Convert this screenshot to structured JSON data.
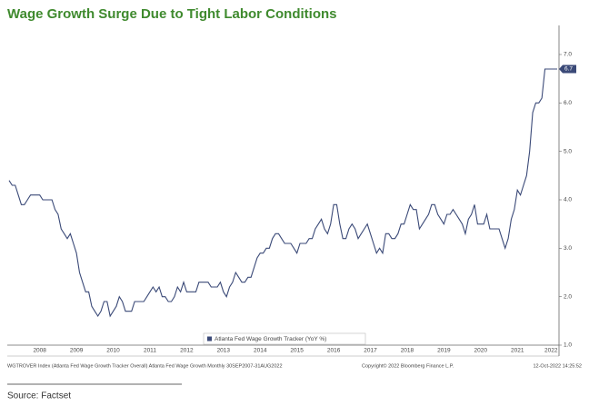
{
  "chart_data": {
    "type": "line",
    "title": "Wage Growth Surge Due to Tight Labor Conditions",
    "legend": "Atlanta Fed Wage Growth Tracker (YoY %)",
    "legend_position": "bottom-center",
    "footer_left": "WGTROVER Index (Atlanta Fed Wage Growth Tracker Overall) Atlanta Fed Wage Growth  Monthly 30SEP2007-31AUG2022",
    "footer_center": "Copyright© 2022 Bloomberg Finance L.P.",
    "footer_right": "12-Oct-2022 14:25:52",
    "source": "Source: Factset",
    "color": "#3b4a78",
    "ylim": [
      1,
      7.6
    ],
    "yticks": [
      {
        "value": 1,
        "label": "1.0"
      },
      {
        "value": 2,
        "label": "2.0"
      },
      {
        "value": 3,
        "label": "3.0"
      },
      {
        "value": 4,
        "label": "4.0"
      },
      {
        "value": 5,
        "label": "5.0"
      },
      {
        "value": 6,
        "label": "6.0"
      },
      {
        "value": 7,
        "label": "7.0"
      }
    ],
    "categories": [
      null,
      null,
      null,
      null,
      null,
      null,
      null,
      null,
      null,
      null,
      "2008",
      null,
      null,
      null,
      null,
      null,
      null,
      null,
      null,
      null,
      null,
      null,
      "2009",
      null,
      null,
      null,
      null,
      null,
      null,
      null,
      null,
      null,
      null,
      null,
      "2010",
      null,
      null,
      null,
      null,
      null,
      null,
      null,
      null,
      null,
      null,
      null,
      "2011",
      null,
      null,
      null,
      null,
      null,
      null,
      null,
      null,
      null,
      null,
      null,
      "2012",
      null,
      null,
      null,
      null,
      null,
      null,
      null,
      null,
      null,
      null,
      null,
      "2013",
      null,
      null,
      null,
      null,
      null,
      null,
      null,
      null,
      null,
      null,
      null,
      "2014",
      null,
      null,
      null,
      null,
      null,
      null,
      null,
      null,
      null,
      null,
      null,
      "2015",
      null,
      null,
      null,
      null,
      null,
      null,
      null,
      null,
      null,
      null,
      null,
      "2016",
      null,
      null,
      null,
      null,
      null,
      null,
      null,
      null,
      null,
      null,
      null,
      "2017",
      null,
      null,
      null,
      null,
      null,
      null,
      null,
      null,
      null,
      null,
      null,
      "2018",
      null,
      null,
      null,
      null,
      null,
      null,
      null,
      null,
      null,
      null,
      null,
      "2019",
      null,
      null,
      null,
      null,
      null,
      null,
      null,
      null,
      null,
      null,
      null,
      "2020",
      null,
      null,
      null,
      null,
      null,
      null,
      null,
      null,
      null,
      null,
      null,
      "2021",
      null,
      null,
      null,
      null,
      null,
      null,
      null,
      null,
      null,
      null,
      "2022",
      null,
      null
    ],
    "values": [
      4.4,
      4.3,
      4.3,
      4.1,
      3.9,
      3.9,
      4.0,
      4.1,
      4.1,
      4.1,
      4.1,
      4.0,
      4.0,
      4.0,
      4.0,
      3.8,
      3.7,
      3.4,
      3.3,
      3.2,
      3.3,
      3.1,
      2.9,
      2.5,
      2.3,
      2.1,
      2.1,
      1.8,
      1.7,
      1.6,
      1.7,
      1.9,
      1.9,
      1.6,
      1.7,
      1.8,
      2.0,
      1.9,
      1.7,
      1.7,
      1.7,
      1.9,
      1.9,
      1.9,
      1.9,
      2.0,
      2.1,
      2.2,
      2.1,
      2.2,
      2.0,
      2.0,
      1.9,
      1.9,
      2.0,
      2.2,
      2.1,
      2.3,
      2.1,
      2.1,
      2.1,
      2.1,
      2.3,
      2.3,
      2.3,
      2.3,
      2.2,
      2.2,
      2.2,
      2.3,
      2.1,
      2.0,
      2.2,
      2.3,
      2.5,
      2.4,
      2.3,
      2.3,
      2.4,
      2.4,
      2.6,
      2.8,
      2.9,
      2.9,
      3.0,
      3.0,
      3.2,
      3.3,
      3.3,
      3.2,
      3.1,
      3.1,
      3.1,
      3.0,
      2.9,
      3.1,
      3.1,
      3.1,
      3.2,
      3.2,
      3.4,
      3.5,
      3.6,
      3.4,
      3.3,
      3.5,
      3.9,
      3.9,
      3.5,
      3.2,
      3.2,
      3.4,
      3.5,
      3.4,
      3.2,
      3.3,
      3.4,
      3.5,
      3.3,
      3.1,
      2.9,
      3.0,
      2.9,
      3.3,
      3.3,
      3.2,
      3.2,
      3.3,
      3.5,
      3.5,
      3.7,
      3.9,
      3.8,
      3.8,
      3.4,
      3.5,
      3.6,
      3.7,
      3.9,
      3.9,
      3.7,
      3.6,
      3.5,
      3.7,
      3.7,
      3.8,
      3.7,
      3.6,
      3.5,
      3.3,
      3.6,
      3.7,
      3.9,
      3.5,
      3.5,
      3.5,
      3.7,
      3.4,
      3.4,
      3.4,
      3.4,
      3.2,
      3.0,
      3.2,
      3.6,
      3.8,
      4.2,
      4.1,
      4.3,
      4.5,
      5.0,
      5.8,
      6.0,
      6.0,
      6.1,
      6.7,
      6.7,
      6.7,
      6.7,
      6.7
    ]
  }
}
